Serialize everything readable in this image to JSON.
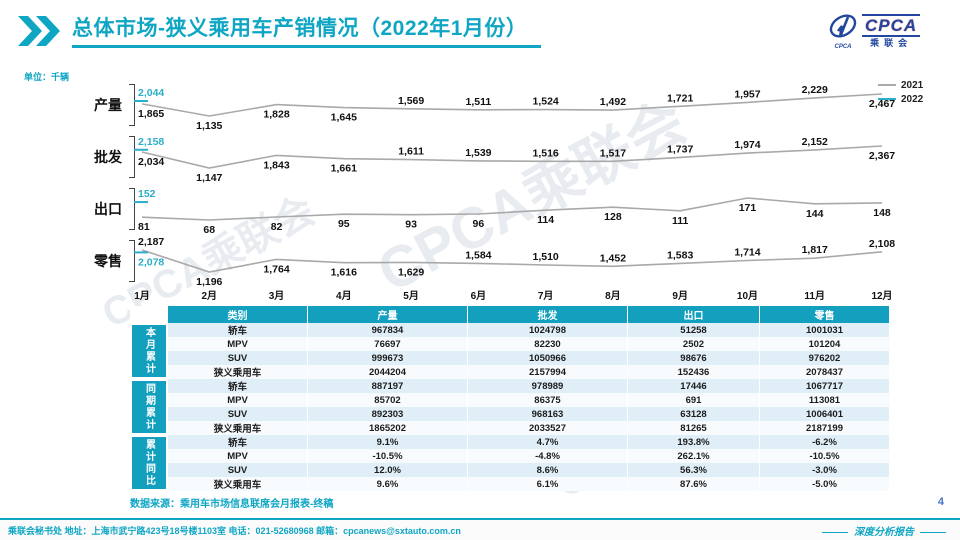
{
  "header": {
    "title": "总体市场-狭义乘用车产销情况（2022年1月份）",
    "logo": {
      "name": "CPCA",
      "sub": "乘联会"
    }
  },
  "unit_label": "单位：千辆",
  "watermark": "CPCA乘联会",
  "colors": {
    "accent": "#0FA6C4",
    "table_header": "#13A0BE",
    "stripe": "#E0EEF8",
    "line_2021": "#A9A9A9",
    "line_2022": "#2BAEC9",
    "page_number": "#4472C4"
  },
  "chart_data": {
    "type": "line",
    "unit": "千辆",
    "categories": [
      "1月",
      "2月",
      "3月",
      "4月",
      "5月",
      "6月",
      "7月",
      "8月",
      "9月",
      "10月",
      "11月",
      "12月"
    ],
    "legend": [
      {
        "name": "2021",
        "color": "#A9A9A9"
      },
      {
        "name": "2022",
        "color": "#2BAEC9"
      }
    ],
    "legend_position": "top-right",
    "rows": [
      {
        "key": "production",
        "label": "产量",
        "y2021": [
          1865,
          1135,
          1828,
          1645,
          1569,
          1511,
          1524,
          1492,
          1721,
          1957,
          2229,
          2467
        ],
        "y2022_jan": 2044,
        "label_sides": [
          "b",
          "b",
          "b",
          "b",
          "a",
          "a",
          "a",
          "a",
          "a",
          "a",
          "a",
          "b"
        ],
        "side_2022": "a"
      },
      {
        "key": "wholesale",
        "label": "批发",
        "y2021": [
          2034,
          1147,
          1843,
          1661,
          1611,
          1539,
          1516,
          1517,
          1737,
          1974,
          2152,
          2367
        ],
        "y2022_jan": 2158,
        "label_sides": [
          "b",
          "b",
          "b",
          "b",
          "a",
          "a",
          "a",
          "a",
          "a",
          "a",
          "a",
          "b"
        ],
        "side_2022": "a"
      },
      {
        "key": "export",
        "label": "出口",
        "y2021": [
          81,
          68,
          82,
          95,
          93,
          96,
          114,
          128,
          111,
          171,
          144,
          148
        ],
        "y2022_jan": 152,
        "label_sides": [
          "b",
          "b",
          "b",
          "b",
          "b",
          "b",
          "b",
          "b",
          "b",
          "b",
          "b",
          "b"
        ],
        "side_2022": "a"
      },
      {
        "key": "retail",
        "label": "零售",
        "y2021": [
          2187,
          1196,
          1764,
          1616,
          1629,
          1584,
          1510,
          1452,
          1583,
          1714,
          1817,
          2108
        ],
        "y2022_jan": 2078,
        "label_sides": [
          "a",
          "b",
          "b",
          "b",
          "b",
          "a",
          "a",
          "a",
          "a",
          "a",
          "a",
          "a"
        ],
        "side_2022": "b"
      }
    ]
  },
  "table": {
    "headers": [
      "类别",
      "产量",
      "批发",
      "出口",
      "零售"
    ],
    "groups": [
      {
        "label": "本月累计",
        "rows": [
          [
            "轿车",
            "967834",
            "1024798",
            "51258",
            "1001031"
          ],
          [
            "MPV",
            "76697",
            "82230",
            "2502",
            "101204"
          ],
          [
            "SUV",
            "999673",
            "1050966",
            "98676",
            "976202"
          ],
          [
            "狭义乘用车",
            "2044204",
            "2157994",
            "152436",
            "2078437"
          ]
        ]
      },
      {
        "label": "同期累计",
        "rows": [
          [
            "轿车",
            "887197",
            "978989",
            "17446",
            "1067717"
          ],
          [
            "MPV",
            "85702",
            "86375",
            "691",
            "113081"
          ],
          [
            "SUV",
            "892303",
            "968163",
            "63128",
            "1006401"
          ],
          [
            "狭义乘用车",
            "1865202",
            "2033527",
            "81265",
            "2187199"
          ]
        ]
      },
      {
        "label": "累计同比",
        "rows": [
          [
            "轿车",
            "9.1%",
            "4.7%",
            "193.8%",
            "-6.2%"
          ],
          [
            "MPV",
            "-10.5%",
            "-4.8%",
            "262.1%",
            "-10.5%"
          ],
          [
            "SUV",
            "12.0%",
            "8.6%",
            "56.3%",
            "-3.0%"
          ],
          [
            "狭义乘用车",
            "9.6%",
            "6.1%",
            "87.6%",
            "-5.0%"
          ]
        ]
      }
    ]
  },
  "source_note": "数据来源：乘用车市场信息联席会月报表-终稿",
  "page_number": "4",
  "footer": {
    "left": "乘联会秘书处   地址：上海市武宁路423号18号楼1103室  电话：021-52680968  邮箱：cpcanews@sxtauto.com.cn",
    "right": "深度分析报告"
  }
}
